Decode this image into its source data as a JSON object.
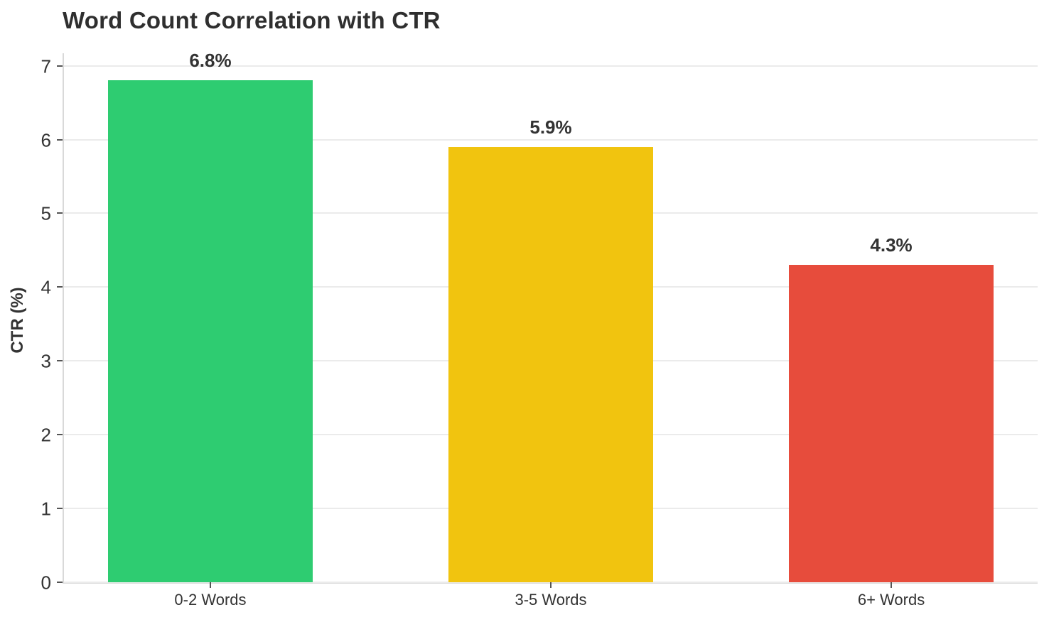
{
  "page": {
    "background": "#ffffff"
  },
  "chart_data": {
    "type": "bar",
    "title": "Word Count Correlation with CTR",
    "xlabel": "",
    "ylabel": "CTR (%)",
    "categories": [
      "0-2 Words",
      "3-5 Words",
      "6+ Words"
    ],
    "values": [
      6.8,
      5.9,
      4.3
    ],
    "value_labels": [
      "6.8%",
      "5.9%",
      "4.3%"
    ],
    "bar_colors": [
      "#2ecc71",
      "#f1c40f",
      "#e74c3c"
    ],
    "yticks": [
      0,
      1,
      2,
      3,
      4,
      5,
      6,
      7
    ],
    "ylim": [
      0,
      7.17
    ],
    "grid": "horizontal-only",
    "legend_position": "none",
    "colors": {
      "title_text": "#2f2f2f",
      "axis_text": "#333333",
      "gridline": "#ebebeb",
      "axis_spine": "#d9d9d9",
      "tick_mark": "#555555",
      "background": "#ffffff"
    }
  }
}
